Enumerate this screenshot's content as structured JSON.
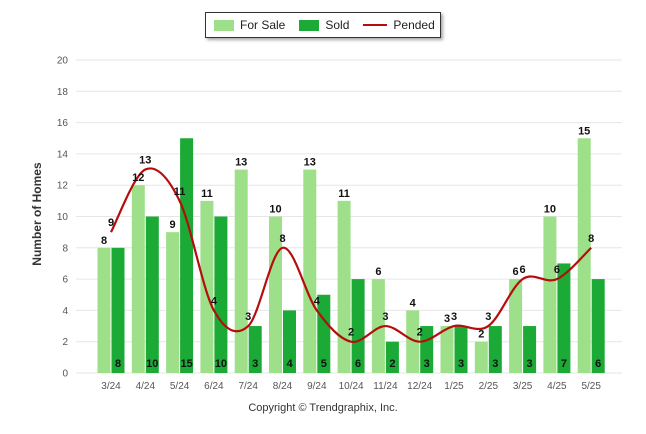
{
  "legend": {
    "for_sale": "For Sale",
    "sold": "Sold",
    "pended": "Pended"
  },
  "copyright": "Copyright © Trendgraphix, Inc.",
  "colors": {
    "for_sale": "#9edf8a",
    "sold": "#1aaa35",
    "pended": "#b50d0d",
    "grid": "#e6e6e6",
    "axis_text": "#555555"
  },
  "chart_data": {
    "type": "bar",
    "ylabel": "Number of Homes",
    "xlabel": "",
    "ylim": [
      0,
      20
    ],
    "yticks": [
      0,
      2,
      4,
      6,
      8,
      10,
      12,
      14,
      16,
      18,
      20
    ],
    "grid": true,
    "legend_position": "top-center",
    "categories": [
      "3/24",
      "4/24",
      "5/24",
      "6/24",
      "7/24",
      "8/24",
      "9/24",
      "10/24",
      "11/24",
      "12/24",
      "1/25",
      "2/25",
      "3/25",
      "4/25",
      "5/25"
    ],
    "series": [
      {
        "name": "For Sale",
        "type": "bar",
        "values": [
          8,
          12,
          9,
          11,
          13,
          10,
          13,
          11,
          6,
          4,
          3,
          2,
          6,
          10,
          15
        ]
      },
      {
        "name": "Sold",
        "type": "bar",
        "values": [
          8,
          10,
          15,
          10,
          3,
          4,
          5,
          6,
          2,
          3,
          3,
          3,
          3,
          7,
          6
        ]
      },
      {
        "name": "Pended",
        "type": "line",
        "values": [
          9,
          13,
          11,
          4,
          3,
          8,
          4,
          2,
          3,
          2,
          3,
          3,
          6,
          6,
          8
        ]
      }
    ]
  }
}
